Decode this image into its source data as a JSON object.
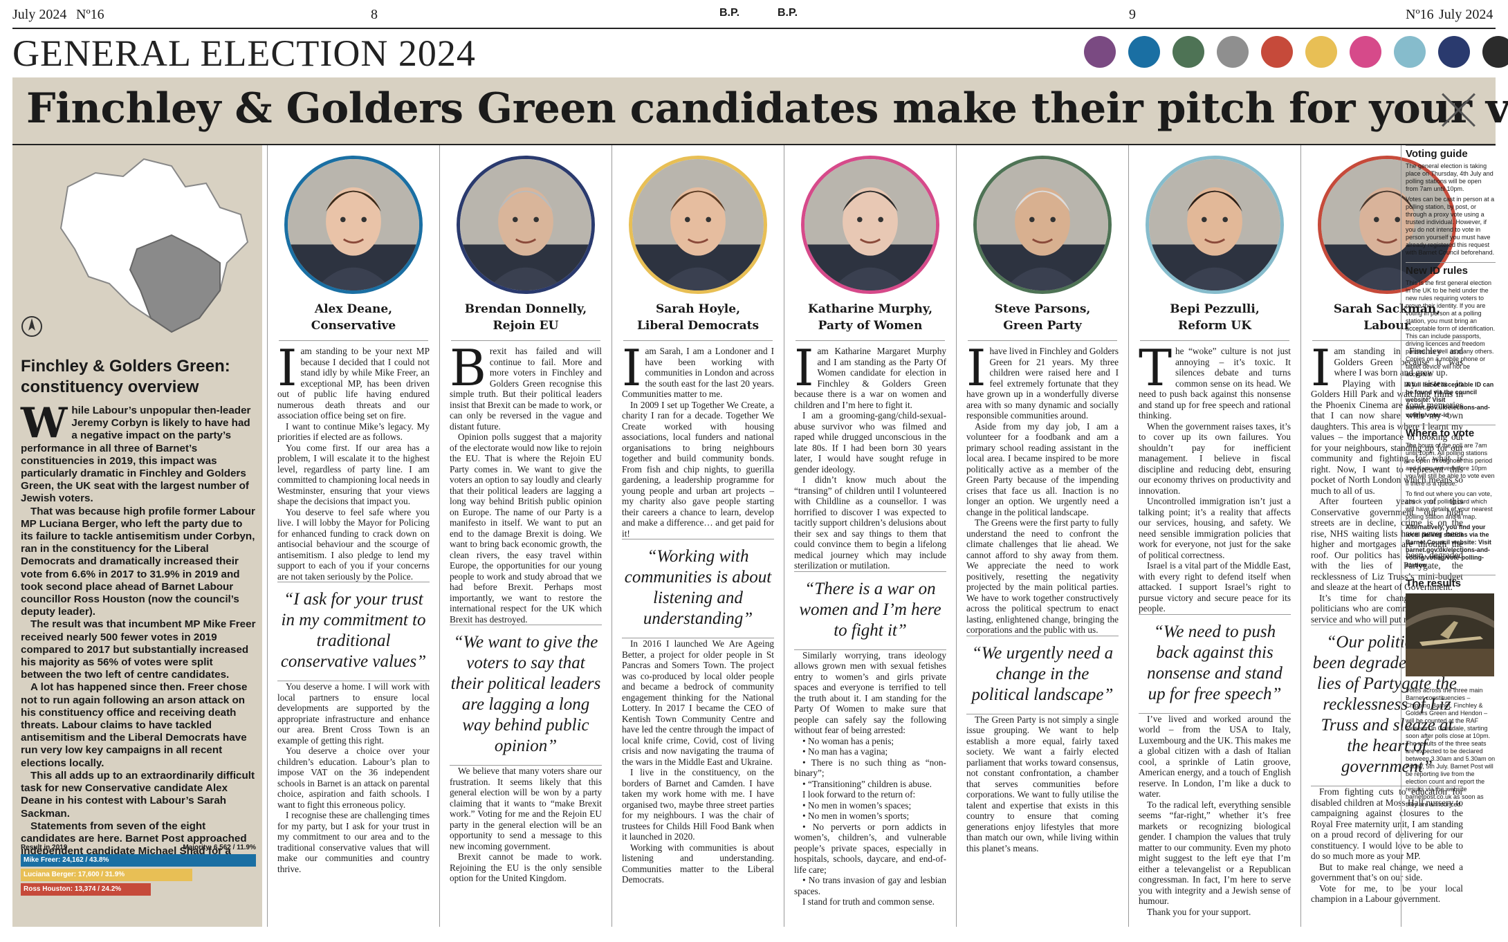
{
  "masthead": {
    "left_date": "July 2024",
    "left_issue": "Nº16",
    "page_left": "8",
    "logo_left": "B.P.",
    "logo_right": "B.P.",
    "page_right": "9",
    "right_issue": "Nº16",
    "right_date": "July 2024"
  },
  "section_title": "GENERAL ELECTION 2024",
  "party_colors": [
    "#7a4a82",
    "#1a6fa3",
    "#4e7355",
    "#8f8f8f",
    "#c64a3a",
    "#e8bf55",
    "#d64a8a",
    "#86bccc",
    "#2a3a6e",
    "#2b2b2b"
  ],
  "headline": "Finchley & Golders Green candidates make their pitch for your vote",
  "overview": {
    "title": "Finchley & Golders Green: constituency overview",
    "drop_letter": "W",
    "paragraphs": [
      "hile Labour’s unpopular then-leader Jeremy Corbyn is likely to have had a negative impact on the party’s performance in all three of Barnet’s constituencies in 2019, this impact was particularly dramatic in Finchley and Golders Green, the UK seat with the largest number of Jewish voters.",
      "That was because high profile former Labour MP Luciana Berger, who left the party due to its failure to tackle antisemitism under Corbyn, ran in the constituency for the Liberal Democrats and dramatically increased their vote from 6.6% in 2017 to 31.9% in 2019 and took second place ahead of Barnet Labour councillor Ross Houston (now the council’s deputy leader).",
      "The result was that incumbent MP Mike Freer received nearly 500 fewer votes in 2019 compared to 2017 but substantially increased his majority as 56% of votes were split between the two left of centre candidates.",
      "A lot has happened since then. Freer chose not to run again following an arson attack on his constituency office and receiving death threats. Labour claims to have tackled antisemitism and the Liberal Democrats have run very low key campaigns in all recent elections locally.",
      "This all adds up to an extraordinarily difficult task for new Conservative candidate Alex Deane in his contest with Labour’s Sarah Sackman.",
      "Statements from seven of the eight candidates are here. Barnet Post approached independent candidate Michael Shad for a statement but has not received one."
    ],
    "results_label": "Result in 2019",
    "majority": "Majority: 6,562 / 11.9%",
    "results": [
      {
        "label": "Mike Freer: 24,162 / 43.8%",
        "share": 43.8,
        "color": "#1a6fa3"
      },
      {
        "label": "Luciana Berger: 17,600 / 31.9%",
        "share": 31.9,
        "color": "#e8bf55"
      },
      {
        "label": "Ross Houston: 13,374 / 24.2%",
        "share": 24.2,
        "color": "#c64a3a"
      }
    ]
  },
  "candidates": [
    {
      "name": "Alex Deane,",
      "party": "Conservative",
      "ring": "#1a6fa3",
      "drop": "I",
      "before": [
        " am standing to be your next MP because I decided that I could not stand idly by while Mike Freer, an exceptional MP, has been driven out of public life having endured numerous death threats and our association office being set on fire.",
        "I want to continue Mike’s legacy. My priorities if elected are as follows.",
        "You come first. If our area has a problem, I will escalate it to the highest level, regardless of party line. I am committed to championing local needs in Westminster, ensuring that your views shape the decisions that impact you.",
        "You deserve to feel safe where you live. I will lobby the Mayor for Policing for enhanced funding to crack down on antisocial behaviour and the scourge of antisemitism. I also pledge to lend my support to each of you if your concerns are not taken seriously by the Police."
      ],
      "quote": "“I ask for your trust in my commitment to traditional conservative values”",
      "after": [
        "You deserve a home. I will work with local partners to ensure local developments are supported by the appropriate infrastructure and enhance our area. Brent Cross Town is an example of getting this right.",
        "You deserve a choice over your children’s education. Labour’s plan to impose VAT on the 36 independent schools in Barnet is an attack on parental choice, aspiration and faith schools. I want to fight this erroneous policy.",
        "I recognise these are challenging times for my party, but I ask for your trust in my commitment to our area and to the traditional conservative values that will make our communities and country thrive."
      ]
    },
    {
      "name": "Brendan Donnelly,",
      "party": "Rejoin EU",
      "ring": "#2a3a6e",
      "drop": "B",
      "before": [
        "rexit has failed and will continue to fail. More and more voters in Finchley and Golders Green recognise this simple truth. But their political leaders insist that Brexit can be made to work, or can only be reversed in the vague and distant future.",
        "Opinion polls suggest that a majority of the electorate would now like to rejoin the EU. That is where the Rejoin EU Party comes in. We want to give the voters an option to say loudly and clearly that their political leaders are lagging a long way behind British public opinion on Europe. The name of our Party is a manifesto in itself. We want to put an end to the damage Brexit is doing. We want to bring back economic growth, the clean rivers, the easy travel within Europe, the opportunities for our young people to work and study abroad that we had before Brexit. Perhaps most importantly, we want to restore the international respect for the UK which Brexit has destroyed."
      ],
      "quote": "“We want to give the voters to say that their political leaders are lagging a long way behind public opinion”",
      "after": [
        "We believe that many voters share our frustration. It seems likely that this general election will be won by a party claiming that it wants to “make Brexit work.” Voting for me and the Rejoin EU party in the general election will be an opportunity to send a message to this new incoming government.",
        "Brexit cannot be made to work. Rejoining the EU is the only sensible option for the United Kingdom."
      ]
    },
    {
      "name": "Sarah Hoyle,",
      "party": "Liberal Democrats",
      "ring": "#e8bf55",
      "drop": "I",
      "before": [
        " am Sarah, I am a Londoner and I have been working with communities in London and across the south east for the last 20 years. Communities matter to me.",
        "In 2009 I set up Together We Create, a charity I ran for a decade. Together We Create worked with housing associations, local funders and national organisations to bring neighbours together and build community bonds. From fish and chip nights, to guerilla gardening, a leadership programme for young people and urban art projects – my charity also gave people starting their careers a chance to learn, develop and make a difference… and get paid for it!"
      ],
      "quote": "“Working with communities is about listening and understanding”",
      "after": [
        "In 2016 I launched We Are Ageing Better, a project for older people in St Pancras and Somers Town. The project was co-produced by local older people and became a bedrock of community engagement thinking for the National Lottery. In 2017 I became the CEO of Kentish Town Community Centre and have led the centre through the impact of local knife crime, Covid, cost of living crisis and now navigating the trauma of the wars in the Middle East and Ukraine.",
        "I live in the constituency, on the borders of Barnet and Camden. I have taken my work home with me. I have organised two, maybe three street parties for my neighbours. I was the chair of trustees for Childs Hill Food Bank when it launched in 2020.",
        "Working with communities is about listening and understanding. Communities matter to the Liberal Democrats."
      ]
    },
    {
      "name": "Katharine Murphy,",
      "party": "Party of Women",
      "ring": "#d64a8a",
      "drop": "I",
      "before": [
        " am Katharine Margaret Murphy and I am standing as the Party Of Women candidate for election in Finchley & Golders Green because there is a war on women and children and I’m here to fight it.",
        "I am a grooming-gang/child-sexual-abuse survivor who was filmed and raped while drugged unconscious in the late 80s. If I had been born 30 years later, I would have sought refuge in gender ideology.",
        "I didn’t know much about the “transing” of children until I volunteered with Childline as a counsellor. I was horrified to discover I was expected to tacitly support children’s delusions about their sex and say things to them that could convince them to begin a lifelong medical journey which may include sterilization or mutilation."
      ],
      "quote": "“There is a war on women and I’m here to fight it”",
      "after": [
        "Similarly worrying, trans ideology allows grown men with sexual fetishes entry to women’s and girls private spaces and everyone is terrified to tell the truth about it. I am standing for the Party Of Women to make sure that people can safely say the following without fear of being arrested:",
        "• No woman has a penis;",
        "• No man has a vagina;",
        "• There is no such thing as “non-binary”;",
        "• “Transitioning” children is abuse.",
        "I look forward to the return of:",
        "• No men in women’s spaces;",
        "• No men in women’s sports;",
        "• No perverts or porn addicts in women’s, children’s, and vulnerable people’s private spaces, especially in hospitals, schools, daycare, and end-of-life care;",
        "• No trans invasion of gay and lesbian spaces.",
        "I stand for truth and common sense."
      ]
    },
    {
      "name": "Steve Parsons,",
      "party": "Green Party",
      "ring": "#4e7355",
      "drop": "I",
      "before": [
        " have lived in Finchley and Golders Green for 21 years. My three children were raised here and I feel extremely fortunate that they have grown up in a wonderfully diverse area with so many dynamic and socially responsible communities around.",
        "Aside from my day job, I am a volunteer for a foodbank and am a primary school reading assistant in the local area. I became inspired to be more politically active as a member of the Green Party because of the impending crises that face us all. Inaction is no longer an option. We urgently need a change in the political landscape.",
        "The Greens were the first party to fully understand the need to confront the climate challenges that lie ahead. We cannot afford to shy away from them. We appreciate the need to work positively, resetting the negativity projected by the main political parties. We have to work together constructively across the political spectrum to enact lasting, enlightened change, bringing the corporations and the public with us."
      ],
      "quote": "“We urgently need a change in the political landscape”",
      "after": [
        "The Green Party is not simply a single issue grouping. We want to help establish a more equal, fairly taxed society. We want a fairly elected parliament that works toward consensus, not constant confrontation, a chamber that serves communities before corporations. We want to fully utilise the talent and expertise that exists in this country to ensure that coming generations enjoy lifestyles that more than match our own, while living within this planet’s means."
      ]
    },
    {
      "name": "Bepi Pezzulli,",
      "party": "Reform UK",
      "ring": "#86bccc",
      "drop": "T",
      "before": [
        "he “woke” culture is not just annoying – it’s toxic. It silences debate and turns common sense on its head. We need to push back against this nonsense and stand up for free speech and rational thinking.",
        "When the government raises taxes, it’s to cover up its own failures. You shouldn’t pay for inefficient management. I believe in fiscal discipline and reducing debt, ensuring our economy thrives on productivity and innovation.",
        "Uncontrolled immigration isn’t just a talking point; it’s a reality that affects our services, housing, and safety. We need sensible immigration policies that work for everyone, not just for the sake of political correctness.",
        "Israel is a vital part of the Middle East, with every right to defend itself when attacked. I support Israel’s right to pursue victory and secure peace for its people."
      ],
      "quote": "“We need to push back against this nonsense and stand up for free speech”",
      "after": [
        "I’ve lived and worked around the world – from the USA to Italy, Luxembourg and the UK. This makes me a global citizen with a dash of Italian cool, a sprinkle of Latin groove, American energy, and a touch of English reserve. In London, I’m like a duck to water.",
        "To the radical left, everything sensible seems “far-right,” whether it’s free markets or recognizing biological gender. I champion the values that truly matter to our community. Even my photo might suggest to the left eye that I’m either a televangelist or a Republican congressman. In fact, I’m here to serve you with integrity and a Jewish sense of humour.",
        "Thank you for your support."
      ]
    },
    {
      "name": "Sarah Sackman,",
      "party": "Labour",
      "ring": "#c64a3a",
      "drop": "I",
      "before": [
        " am standing in Finchley and Golders Green because it was where I was born and grew up.",
        "Playing with my sisters in Golders Hill Park and watching films in the Phoenix Cinema are fond memories that I can now share with my own daughters. This area is where I learnt my values – the importance of looking out for your neighbours, standing up for our community and fighting for what is right. Now, I want to represent this pocket of North London which means so much to all of us.",
        "After fourteen years of this Conservative government our high streets are in decline, crime is on the rise, NHS waiting lists have never been higher and mortgages are through the roof. Our politics has been degraded with the lies of Partygate, the recklessness of Liz Truss’s mini-budget and sleaze at the heart of Government.",
        "It’s time for change. We need politicians who are committed to public service and who will put residents first."
      ],
      "quote": "“Our politics has been degraded by the lies of Partygate the recklessness of Liz Truss and sleaze at the heart of government”",
      "after": [
        "From fighting cuts to education for disabled children at Moss Hall nursery to campaigning against closures to the Royal Free maternity unit, I am standing on a proud record of delivering for our constituency. I would love to be able to do so much more as your MP.",
        "But to make real change, we need a government that’s on our side.",
        "Vote for me, to be your local champion in a Labour government."
      ]
    }
  ],
  "sidebar": {
    "voting_guide_title": "Voting guide",
    "voting_guide": [
      "The general election is taking place on Thursday, 4th July and polling stations will be open from 7am until 10pm.",
      "Votes can be cast in person at a polling station, by post, or through a proxy vote using a trusted individual. However, if you do not intend to vote in person yourself you must have already registered this request with Barnet Council beforehand."
    ],
    "id_title": "New ID rules",
    "id_text": "This is the first general election in the UK to be held under the new rules requiring voters to prove their identity. If you are voting in person at a polling station, you must bring an acceptable form of identification. This can include passports, driving licences and freedom passes, as well as many others. Copies on a mobile phone or tablet device will not be accepted.",
    "id_link": "A full list of acceptable ID can be found via the council website: Visit barnet.gov.uk/elections-and-voting/voter-id",
    "where_title": "Where to vote",
    "where_text": [
      "The hours of the poll are 7am until 10pm. All polling stations are open throughout this period and if you arrive before 10pm you will still be able to vote even if there is a queue.",
      "To find out where you can vote, check your polling card which will have details of your nearest polling station and a map."
    ],
    "where_link": "Alternatively, you find your local polling stations via the Barnet Council website: Visit barnet.gov.uk/elections-and-voting/voting/vote-polling-station",
    "results_title": "The results",
    "results_text": "Votes across the three main Barnet constituencies – Chipping Barnet, Finchley & Golders Green and Hendon – will be counted at the RAF Museum in Colindale, starting soon after polls close at 10pm. The results of the three seats are expected to be declared between 3.30am and 5.30am on Friday, 5th July. Barnet Post will be reporting live from the election count and report the results via the website barnetpost.co.uk as soon as they are announced."
  }
}
